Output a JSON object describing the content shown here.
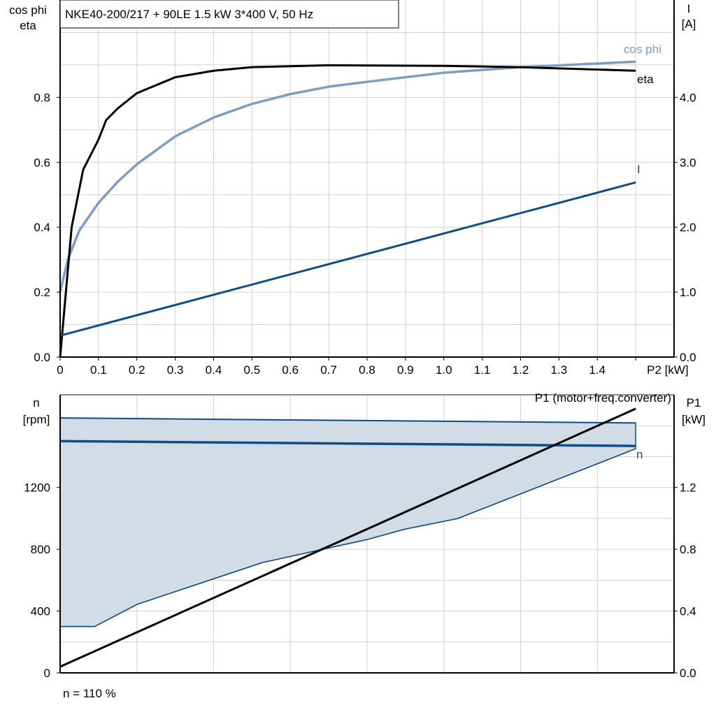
{
  "title": "NKE40-200/217 + 90LE   1.5 kW   3*400 V, 50 Hz",
  "footer_note": "n = 110 %",
  "colors": {
    "eta": "#000000",
    "cos_phi": "#7b9ec2",
    "current": "#114d85",
    "speed": "#114d85",
    "speed_range_fill": "#d1dce7",
    "p1": "#000000",
    "grid": "#d0d0d0"
  },
  "chart_data": [
    {
      "type": "line",
      "title": "NKE40-200/217 + 90LE   1.5 kW   3*400 V, 50 Hz",
      "xlabel": "P2 [kW]",
      "ylabel_left": [
        "cos phi",
        "eta"
      ],
      "ylabel_right": [
        "I",
        "[A]"
      ],
      "xlim": [
        0,
        1.6
      ],
      "ylim_left": [
        0,
        1.1
      ],
      "ylim_right": [
        0,
        5.5
      ],
      "grid": true,
      "x_ticks": [
        "0",
        "0.1",
        "0.2",
        "0.3",
        "0.4",
        "0.5",
        "0.6",
        "0.7",
        "0.8",
        "0.9",
        "1.0",
        "1.1",
        "1.2",
        "1.3",
        "1.4",
        "P2 [kW]"
      ],
      "y_ticks_left": [
        "0.0",
        "0.2",
        "0.4",
        "0.6",
        "0.8"
      ],
      "y_ticks_right": [
        "0.0",
        "1.0",
        "2.0",
        "3.0",
        "4.0"
      ],
      "series": [
        {
          "name": "eta",
          "axis": "left",
          "x": [
            0,
            0.03,
            0.06,
            0.1,
            0.12,
            0.15,
            0.2,
            0.3,
            0.4,
            0.5,
            0.7,
            1.0,
            1.2,
            1.5
          ],
          "y": [
            0,
            0.4,
            0.577,
            0.67,
            0.73,
            0.766,
            0.813,
            0.862,
            0.882,
            0.893,
            0.899,
            0.897,
            0.893,
            0.882
          ]
        },
        {
          "name": "cos phi",
          "axis": "left",
          "x": [
            0,
            0.02,
            0.05,
            0.1,
            0.15,
            0.2,
            0.3,
            0.4,
            0.5,
            0.6,
            0.7,
            0.8,
            1.0,
            1.2,
            1.5
          ],
          "y": [
            0.2,
            0.3,
            0.39,
            0.475,
            0.54,
            0.594,
            0.68,
            0.738,
            0.78,
            0.81,
            0.833,
            0.848,
            0.876,
            0.893,
            0.91
          ]
        },
        {
          "name": "I",
          "axis": "right",
          "x": [
            0,
            1.5
          ],
          "y": [
            0.33,
            2.69
          ]
        }
      ]
    },
    {
      "type": "line",
      "ylabel_left": [
        "n",
        "[rpm]"
      ],
      "ylabel_right": [
        "P1",
        "[kW]"
      ],
      "xlim": [
        0,
        1.6
      ],
      "ylim_left": [
        0,
        1800
      ],
      "ylim_right": [
        0,
        1.8
      ],
      "grid": true,
      "y_ticks_left": [
        "0",
        "400",
        "800",
        "1200"
      ],
      "y_ticks_right": [
        "0.0",
        "0.4",
        "0.8",
        "1.2"
      ],
      "speed_range": {
        "upper": {
          "x": [
            0,
            1.5
          ],
          "y": [
            1650,
            1618
          ]
        },
        "lower": {
          "x": [
            0,
            0.09,
            0.2,
            0.527,
            0.8,
            0.9,
            1.036,
            1.5
          ],
          "y": [
            300,
            300,
            443,
            714,
            863,
            931,
            999,
            1451
          ]
        }
      },
      "series": [
        {
          "name": "n",
          "axis": "left",
          "x": [
            0,
            1.5
          ],
          "y": [
            1500,
            1469
          ]
        },
        {
          "name": "P1 (motor+freq.converter)",
          "axis": "right",
          "x": [
            0,
            1.5
          ],
          "y": [
            0.04,
            1.71
          ]
        }
      ]
    }
  ]
}
